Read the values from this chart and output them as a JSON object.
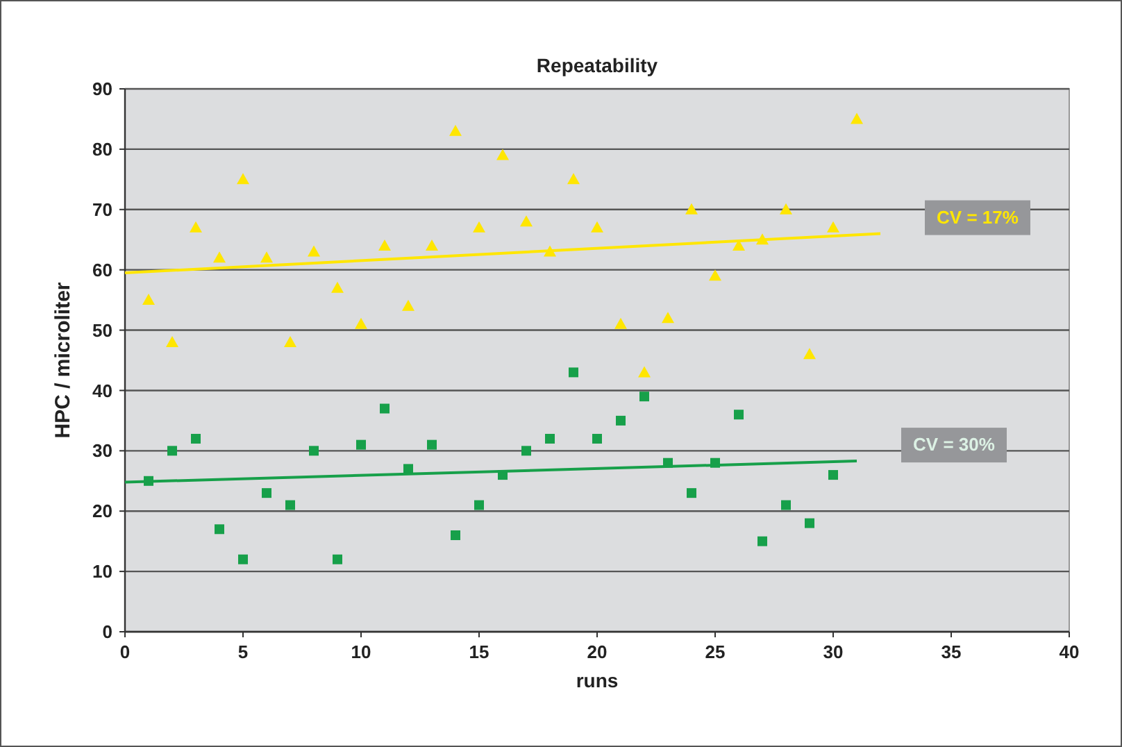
{
  "chart_data": {
    "type": "scatter",
    "title": "Repeatability",
    "xlabel": "runs",
    "ylabel": "HPC / microliter",
    "xlim": [
      0,
      40
    ],
    "xticks": [
      0,
      5,
      10,
      15,
      20,
      25,
      30,
      35,
      40
    ],
    "ylim": [
      0,
      90
    ],
    "yticks": [
      0,
      10,
      20,
      30,
      40,
      50,
      60,
      70,
      80,
      90
    ],
    "grid": "y",
    "series": [
      {
        "marker": "triangle",
        "color": "#ffe600",
        "x": [
          1,
          2,
          3,
          4,
          5,
          6,
          7,
          8,
          9,
          10,
          11,
          12,
          13,
          14,
          15,
          16,
          17,
          18,
          19,
          20,
          21,
          22,
          23,
          24,
          25,
          26,
          27,
          28,
          29,
          30,
          31
        ],
        "values": [
          55,
          48,
          67,
          62,
          75,
          62,
          48,
          63,
          57,
          51,
          64,
          54,
          64,
          83,
          67,
          79,
          68,
          63,
          75,
          67,
          51,
          43,
          52,
          70,
          59,
          64,
          65,
          70,
          46,
          67,
          85
        ]
      },
      {
        "marker": "square",
        "color": "#17a04a",
        "x": [
          1,
          2,
          3,
          4,
          5,
          6,
          7,
          8,
          9,
          10,
          11,
          12,
          13,
          14,
          15,
          16,
          17,
          18,
          19,
          20,
          21,
          22,
          23,
          24,
          25,
          26,
          27,
          28,
          29,
          30
        ],
        "values": [
          25,
          30,
          32,
          17,
          12,
          23,
          21,
          30,
          12,
          31,
          37,
          27,
          31,
          16,
          21,
          26,
          30,
          32,
          43,
          32,
          35,
          39,
          28,
          23,
          28,
          36,
          15,
          21,
          18,
          26
        ]
      },
      {
        "type": "line",
        "marker": "none",
        "color": "#ffe600",
        "x": [
          0,
          32
        ],
        "values": [
          59.5,
          66
        ]
      },
      {
        "type": "line",
        "marker": "none",
        "color": "#17a04a",
        "x": [
          0,
          31
        ],
        "values": [
          24.8,
          28.3
        ]
      }
    ],
    "annotations": [
      "CV = 17%",
      "CV = 30%"
    ]
  }
}
